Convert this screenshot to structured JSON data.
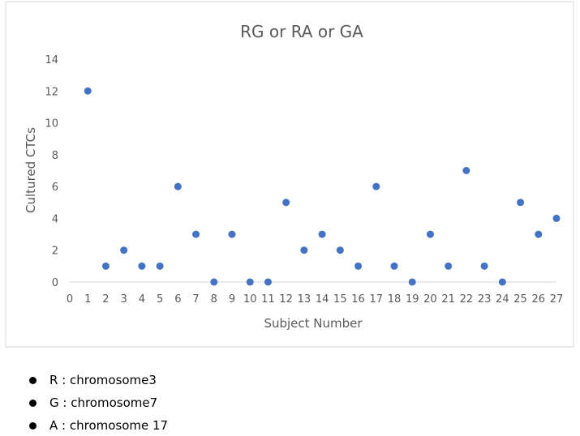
{
  "chart_data": {
    "type": "scatter",
    "title": "RG or RA or GA",
    "xlabel": "Subject Number",
    "ylabel": "Cultured CTCs",
    "xlim": [
      0,
      27
    ],
    "ylim": [
      0,
      14
    ],
    "xticks": [
      0,
      1,
      2,
      3,
      4,
      5,
      6,
      7,
      8,
      9,
      10,
      11,
      12,
      13,
      14,
      15,
      16,
      17,
      18,
      19,
      20,
      21,
      22,
      23,
      24,
      25,
      26,
      27
    ],
    "yticks": [
      0,
      2,
      4,
      6,
      8,
      10,
      12,
      14
    ],
    "grid": false,
    "series": [
      {
        "name": "Cultured CTCs",
        "color": "#4472C4",
        "x": [
          1,
          2,
          3,
          4,
          5,
          6,
          7,
          8,
          9,
          10,
          11,
          12,
          13,
          14,
          15,
          16,
          17,
          18,
          19,
          20,
          21,
          22,
          23,
          24,
          25,
          26,
          27
        ],
        "y": [
          12,
          1,
          2,
          1,
          1,
          6,
          3,
          0,
          3,
          0,
          0,
          5,
          2,
          3,
          2,
          1,
          6,
          1,
          0,
          3,
          1,
          7,
          1,
          0,
          5,
          3,
          4
        ]
      }
    ]
  },
  "legend_notes": [
    "R : chromosome3",
    "G : chromosome7",
    "A : chromosome 17"
  ]
}
